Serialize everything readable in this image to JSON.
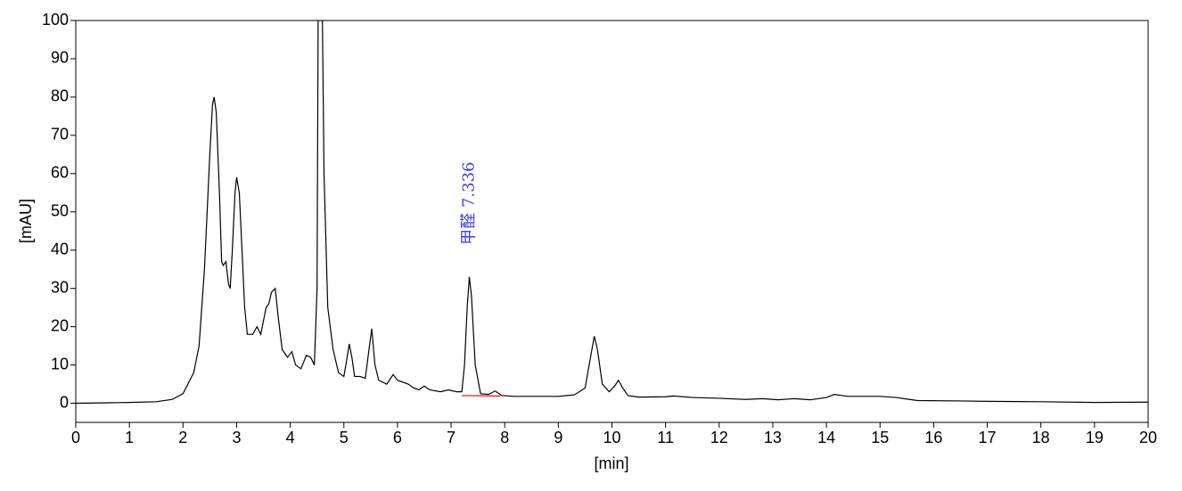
{
  "chart_data": {
    "type": "line",
    "xlabel": "[min]",
    "ylabel": "[mAU]",
    "xlim": [
      0,
      20
    ],
    "ylim": [
      -5,
      100
    ],
    "xticks": [
      0,
      1,
      2,
      3,
      4,
      5,
      6,
      7,
      8,
      9,
      10,
      11,
      12,
      13,
      14,
      15,
      16,
      17,
      18,
      19,
      20
    ],
    "yticks": [
      0,
      10,
      20,
      30,
      40,
      50,
      60,
      70,
      80,
      90,
      100
    ],
    "color": "#000000",
    "x": [
      0,
      0.5,
      1.0,
      1.5,
      1.8,
      2.0,
      2.2,
      2.3,
      2.4,
      2.5,
      2.55,
      2.58,
      2.62,
      2.68,
      2.72,
      2.75,
      2.8,
      2.85,
      2.88,
      2.92,
      2.97,
      3.0,
      3.05,
      3.1,
      3.15,
      3.2,
      3.3,
      3.38,
      3.45,
      3.55,
      3.6,
      3.65,
      3.72,
      3.78,
      3.85,
      3.95,
      4.03,
      4.1,
      4.2,
      4.3,
      4.38,
      4.45,
      4.5,
      4.52,
      4.6,
      4.63,
      4.7,
      4.8,
      4.9,
      5.0,
      5.05,
      5.1,
      5.15,
      5.2,
      5.3,
      5.4,
      5.45,
      5.52,
      5.58,
      5.65,
      5.8,
      5.92,
      6.0,
      6.2,
      6.3,
      6.4,
      6.5,
      6.6,
      6.8,
      6.95,
      7.1,
      7.2,
      7.25,
      7.3,
      7.34,
      7.38,
      7.45,
      7.55,
      7.7,
      7.82,
      7.95,
      8.2,
      8.5,
      9.0,
      9.3,
      9.5,
      9.6,
      9.67,
      9.73,
      9.82,
      9.95,
      10.05,
      10.12,
      10.2,
      10.3,
      10.5,
      11.0,
      11.15,
      11.5,
      12.0,
      12.5,
      12.8,
      13.1,
      13.4,
      13.7,
      14.0,
      14.15,
      14.4,
      15.0,
      15.3,
      15.7,
      16.5,
      17,
      18,
      19,
      20
    ],
    "values": [
      0,
      0.1,
      0.2,
      0.4,
      1,
      2.5,
      8,
      15,
      35,
      65,
      78,
      80,
      76,
      55,
      37,
      36,
      37,
      31,
      30,
      40,
      55,
      59,
      55,
      40,
      25,
      18,
      18,
      20,
      18,
      25,
      26,
      29,
      30,
      22,
      14,
      12,
      13.5,
      10,
      9,
      12.5,
      12,
      10,
      30,
      100,
      100,
      60,
      25,
      14,
      8,
      7,
      11,
      15.5,
      12,
      7,
      7,
      6.5,
      12,
      19.5,
      10,
      6,
      5,
      7.5,
      6,
      5,
      4,
      3.5,
      4.5,
      3.5,
      3,
      3.5,
      3,
      3,
      10,
      25,
      33,
      28,
      10,
      2.5,
      2.3,
      3.2,
      2,
      1.8,
      1.8,
      1.8,
      2.2,
      4,
      12,
      17.5,
      14,
      5,
      3,
      4.5,
      6,
      4,
      2,
      1.6,
      1.7,
      1.9,
      1.5,
      1.3,
      1.0,
      1.2,
      0.9,
      1.2,
      0.9,
      1.5,
      2.3,
      1.8,
      1.8,
      1.5,
      0.7,
      0.6,
      0.5,
      0.4,
      0.2,
      0.3
    ],
    "baseline": {
      "x": [
        7.2,
        7.92
      ],
      "values": [
        2.0,
        1.9
      ],
      "color": "#ff0000"
    },
    "annotations": [
      {
        "text": "甲醛  7.336",
        "x": 7.336,
        "y": 33,
        "color": "#4040e0"
      }
    ]
  }
}
